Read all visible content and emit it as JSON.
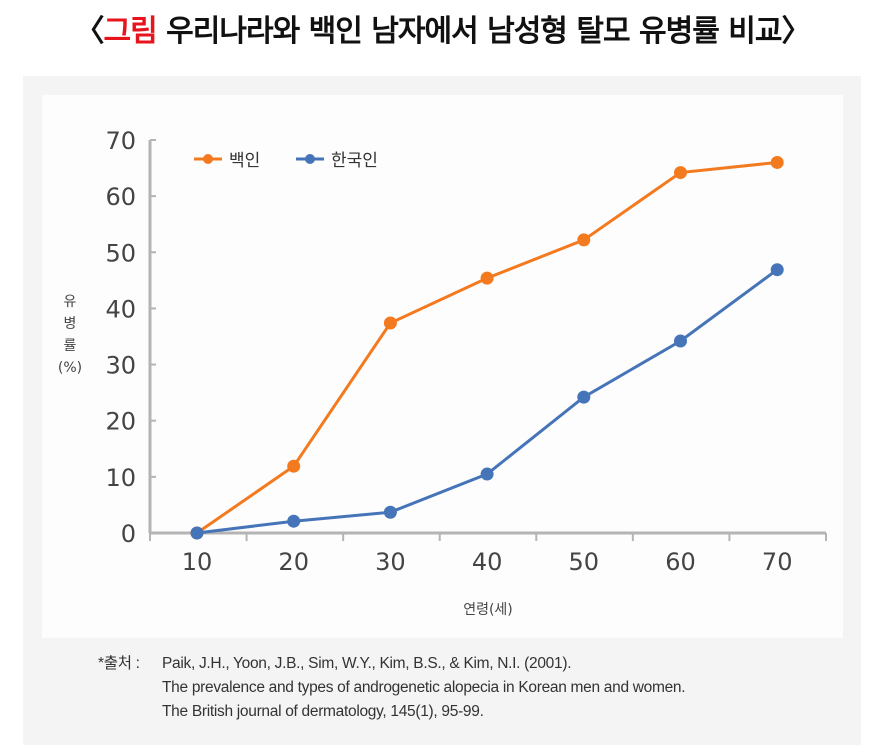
{
  "title": {
    "prefix": "〈",
    "highlight": "그림",
    "text": " 우리나라와 백인 남자에서 남성형 탈모 유병률  비교",
    "suffix": "〉"
  },
  "colors": {
    "title_highlight": "#e8141b",
    "white": "#f47a20",
    "korean": "#4674b8"
  },
  "chart_data": {
    "type": "line",
    "x": [
      10,
      20,
      30,
      40,
      50,
      60,
      70
    ],
    "xlabel": "연령(세)",
    "ylabel": [
      "유",
      "병",
      "률",
      "(%)"
    ],
    "ylim": [
      0,
      70
    ],
    "yticks": [
      0,
      10,
      20,
      30,
      40,
      50,
      60,
      70
    ],
    "legend_position": "top-left",
    "grid": false,
    "series": [
      {
        "name": "백인",
        "color": "#f47a20",
        "values": [
          0,
          11.9,
          37.4,
          45.4,
          52.2,
          64.2,
          66
        ]
      },
      {
        "name": "한국인",
        "color": "#4674b8",
        "values": [
          0,
          2.1,
          3.7,
          10.5,
          24.2,
          34.2,
          46.9
        ]
      }
    ]
  },
  "source": {
    "label": "*출처 :",
    "lines": [
      "Paik, J.H., Yoon, J.B., Sim, W.Y., Kim, B.S., & Kim, N.I. (2001).",
      "The prevalence and types of androgenetic alopecia in Korean men and women.",
      "The British journal of dermatology, 145(1), 95-99."
    ]
  }
}
